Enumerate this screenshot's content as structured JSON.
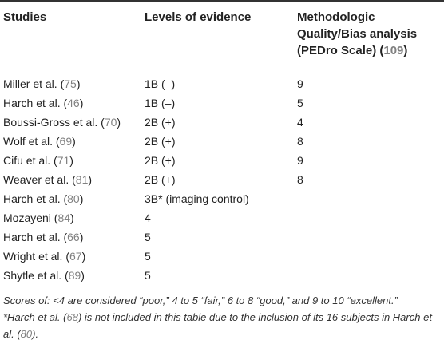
{
  "headers": {
    "studies": "Studies",
    "levels": "Levels of evidence",
    "quality_line1": "Methodologic",
    "quality_line2": "Quality/Bias analysis",
    "quality_line3_pre": "(PEDro Scale) (",
    "quality_line3_ref": "109",
    "quality_line3_post": ")"
  },
  "rows": [
    {
      "study": "Miller et al. (",
      "ref": "75",
      "close": ")",
      "level": "1B (–)",
      "score": "9"
    },
    {
      "study": "Harch et al. (",
      "ref": "46",
      "close": ")",
      "level": "1B (–)",
      "score": "5"
    },
    {
      "study": "Boussi-Gross et al. (",
      "ref": "70",
      "close": ")",
      "level": "2B (+)",
      "score": "4"
    },
    {
      "study": "Wolf et al. (",
      "ref": "69",
      "close": ")",
      "level": "2B (+)",
      "score": "8"
    },
    {
      "study": "Cifu et al. (",
      "ref": "71",
      "close": ")",
      "level": "2B (+)",
      "score": "9"
    },
    {
      "study": "Weaver et al. (",
      "ref": "81",
      "close": ")",
      "level": "2B (+)",
      "score": "8"
    },
    {
      "study": "Harch et al. (",
      "ref": "80",
      "close": ")",
      "level": "3B* (imaging control)",
      "score": ""
    },
    {
      "study": "Mozayeni (",
      "ref": "84",
      "close": ")",
      "level": "4",
      "score": ""
    },
    {
      "study": "Harch et al. (",
      "ref": "66",
      "close": ")",
      "level": "5",
      "score": ""
    },
    {
      "study": "Wright et al. (",
      "ref": "67",
      "close": ")",
      "level": "5",
      "score": ""
    },
    {
      "study": "Shytle et al. (",
      "ref": "89",
      "close": ")",
      "level": "5",
      "score": ""
    }
  ],
  "footnotes": {
    "scores": "Scores of: <4 are considered “poor,” 4 to 5 “fair,” 6 to 8 “good,” and 9 to 10 “excellent.”",
    "harch_pre": "*Harch et al. (",
    "harch_ref1": "68",
    "harch_mid": ") is not included in this table due to the inclusion of its 16 subjects in Harch et al. (",
    "harch_ref2": "80",
    "harch_post": ")."
  }
}
